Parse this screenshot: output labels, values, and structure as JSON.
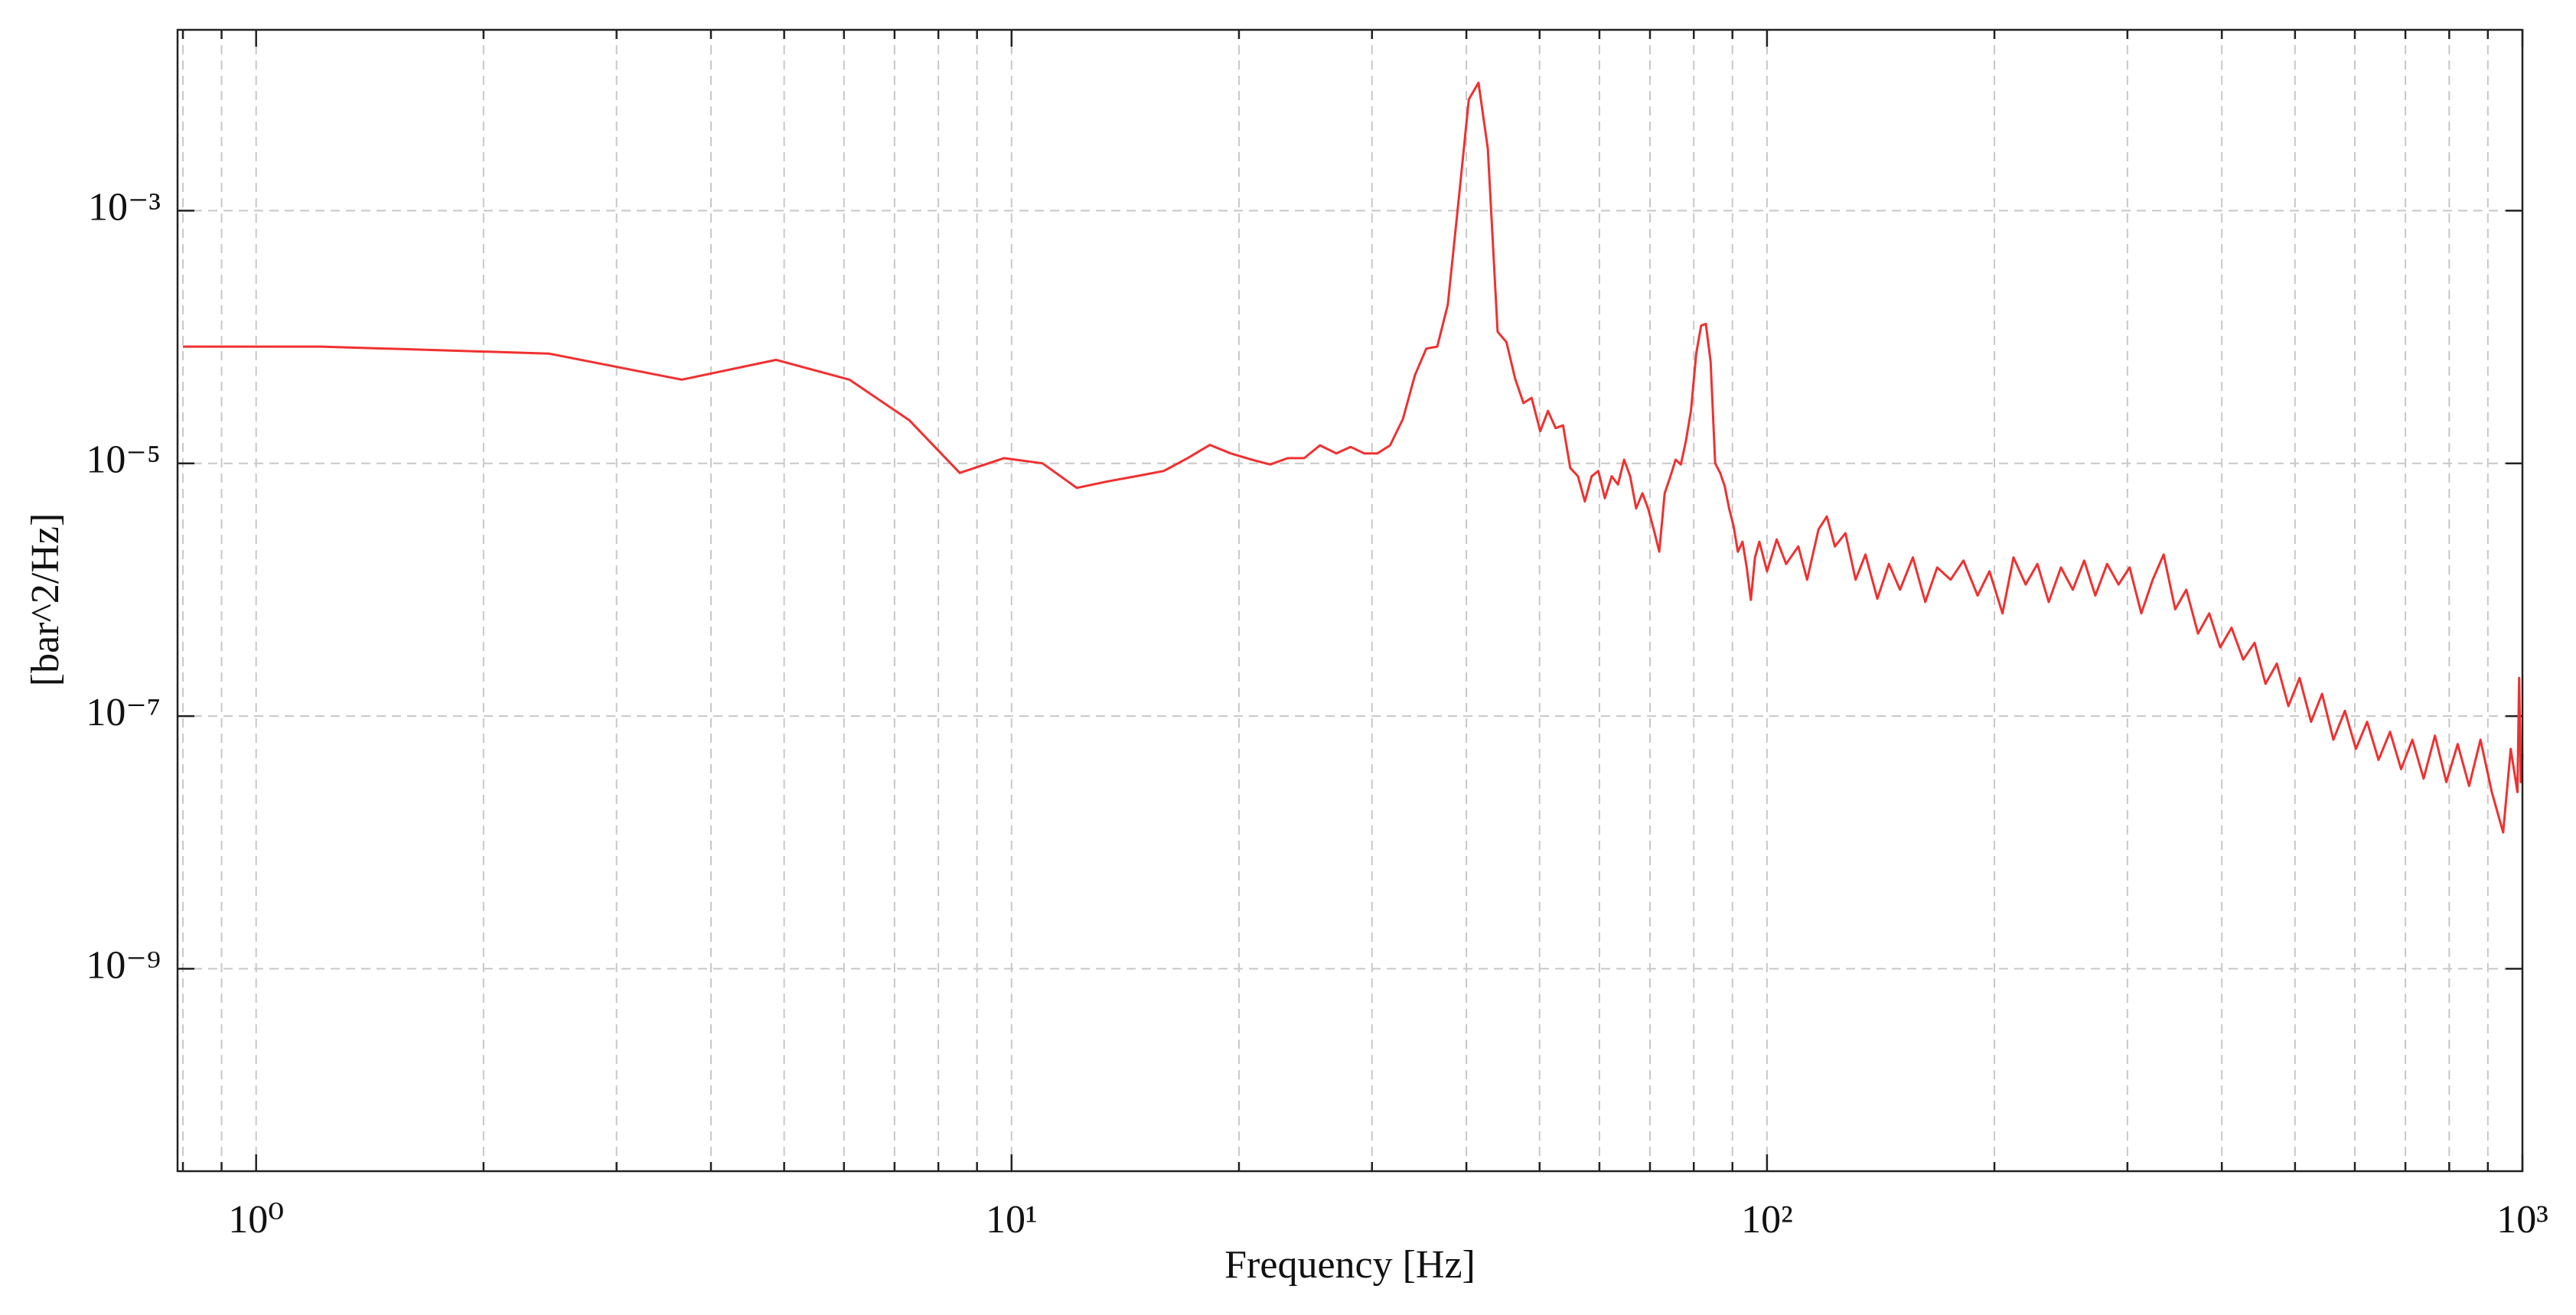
{
  "chart_data": {
    "type": "line",
    "xlabel": "Frequency [Hz]",
    "ylabel": "[bar^2/Hz]",
    "xscale": "log",
    "yscale": "log",
    "grid": true,
    "color": "#f03030",
    "xlim": [
      0.787,
      1000
    ],
    "ylim": [
      2.5e-11,
      0.027
    ],
    "xticks": [
      {
        "value": 1,
        "label": "10⁰"
      },
      {
        "value": 10,
        "label": "10¹"
      },
      {
        "value": 100,
        "label": "10²"
      },
      {
        "value": 1000,
        "label": "10³"
      }
    ],
    "xminorticks": [
      0.8,
      0.9,
      2,
      3,
      4,
      5,
      6,
      7,
      8,
      9,
      20,
      30,
      40,
      50,
      60,
      70,
      80,
      90,
      200,
      300,
      400,
      500,
      600,
      700,
      800,
      900
    ],
    "yticks": [
      {
        "value": 1e-09,
        "label": "10⁻⁹"
      },
      {
        "value": 1e-07,
        "label": "10⁻⁷"
      },
      {
        "value": 1e-05,
        "label": "10⁻⁵"
      },
      {
        "value": 0.001,
        "label": "10⁻³"
      }
    ],
    "x": [
      0.8,
      1.22,
      2.44,
      3.66,
      4.88,
      6.1,
      7.32,
      8.54,
      9.77,
      10.99,
      12.2,
      13.4,
      14.6,
      15.9,
      17.1,
      18.3,
      19.5,
      20.8,
      22.0,
      23.2,
      24.4,
      25.6,
      26.9,
      28.1,
      29.3,
      30.5,
      31.7,
      32.96,
      34.2,
      35.4,
      36.6,
      37.8,
      39.1,
      40.3,
      41.5,
      42.7,
      44.0,
      45.2,
      46.4,
      47.6,
      48.8,
      50.1,
      51.3,
      52.5,
      53.7,
      54.9,
      56.2,
      57.4,
      58.6,
      59.8,
      61.0,
      62.3,
      63.5,
      64.7,
      65.9,
      67.1,
      68.4,
      69.6,
      70.8,
      72.0,
      73.2,
      74.5,
      75.7,
      76.9,
      78.1,
      79.3,
      80.6,
      81.8,
      83.0,
      84.2,
      85.4,
      86.7,
      87.9,
      89.1,
      90.3,
      91.5,
      92.8,
      94.0,
      95.2,
      96.4,
      97.7,
      100,
      103,
      106,
      110,
      113,
      117,
      120,
      123,
      127,
      131,
      135,
      140,
      145,
      150,
      156,
      162,
      168,
      175,
      182,
      190,
      197,
      205,
      212,
      220,
      228,
      236,
      245,
      254,
      263,
      272,
      282,
      292,
      302,
      313,
      324,
      335,
      347,
      359,
      372,
      385,
      398,
      412,
      427,
      442,
      457,
      473,
      490,
      507,
      525,
      543,
      562,
      582,
      602,
      623,
      645,
      668,
      691,
      715,
      740,
      766,
      793,
      821,
      850,
      880,
      911,
      943,
      965,
      985,
      990,
      995,
      1000
    ],
    "values": [
      8.4e-05,
      8.4e-05,
      7.4e-05,
      4.6e-05,
      6.6e-05,
      4.6e-05,
      2.2e-05,
      8.4e-06,
      1.1e-05,
      1e-05,
      6.4e-06,
      7.2e-06,
      7.9e-06,
      8.7e-06,
      1.1e-05,
      1.4e-05,
      1.2e-05,
      1.07e-05,
      9.8e-06,
      1.1e-05,
      1.1e-05,
      1.39e-05,
      1.2e-05,
      1.35e-05,
      1.2e-05,
      1.2e-05,
      1.39e-05,
      2.24e-05,
      5e-05,
      8.1e-05,
      8.4e-05,
      0.00018,
      0.00127,
      0.0076,
      0.0103,
      0.0031,
      0.00011,
      9.1e-05,
      4.7e-05,
      3e-05,
      3.3e-05,
      1.8e-05,
      2.6e-05,
      1.9e-05,
      2e-05,
      9.2e-06,
      7.9e-06,
      5e-06,
      7.9e-06,
      8.7e-06,
      5.3e-06,
      7.9e-06,
      6.8e-06,
      1.07e-05,
      7.9e-06,
      4.4e-06,
      5.8e-06,
      4.4e-06,
      3e-06,
      2e-06,
      5.8e-06,
      7.9e-06,
      1.07e-05,
      9.8e-06,
      1.5e-05,
      2.6e-05,
      7.4e-05,
      0.000123,
      0.000127,
      6.4e-05,
      1e-05,
      8.4e-06,
      6.6e-06,
      4.4e-06,
      3.2e-06,
      2e-06,
      2.4e-06,
      1.5e-06,
      8.3e-07,
      1.8e-06,
      2.4e-06,
      1.4e-06,
      2.5e-06,
      1.6e-06,
      2.2e-06,
      1.2e-06,
      3e-06,
      3.8e-06,
      2.2e-06,
      2.8e-06,
      1.2e-06,
      1.9e-06,
      8.5e-07,
      1.6e-06,
      1e-06,
      1.8e-06,
      8e-07,
      1.5e-06,
      1.2e-06,
      1.7e-06,
      9e-07,
      1.4e-06,
      6.5e-07,
      1.8e-06,
      1.1e-06,
      1.6e-06,
      8e-07,
      1.5e-06,
      1e-06,
      1.7e-06,
      9e-07,
      1.6e-06,
      1.1e-06,
      1.5e-06,
      6.5e-07,
      1.2e-06,
      1.9e-06,
      7e-07,
      1e-06,
      4.5e-07,
      6.5e-07,
      3.5e-07,
      5e-07,
      2.8e-07,
      3.8e-07,
      1.8e-07,
      2.6e-07,
      1.2e-07,
      2e-07,
      9e-08,
      1.5e-07,
      6.5e-08,
      1.1e-07,
      5.5e-08,
      9e-08,
      4.5e-08,
      7.5e-08,
      3.8e-08,
      6.5e-08,
      3.2e-08,
      7e-08,
      3e-08,
      6e-08,
      2.8e-08,
      6.5e-08,
      2.5e-08,
      1.2e-08,
      5.5e-08,
      2.5e-08,
      2e-07,
      3e-08,
      5e-08
    ]
  }
}
